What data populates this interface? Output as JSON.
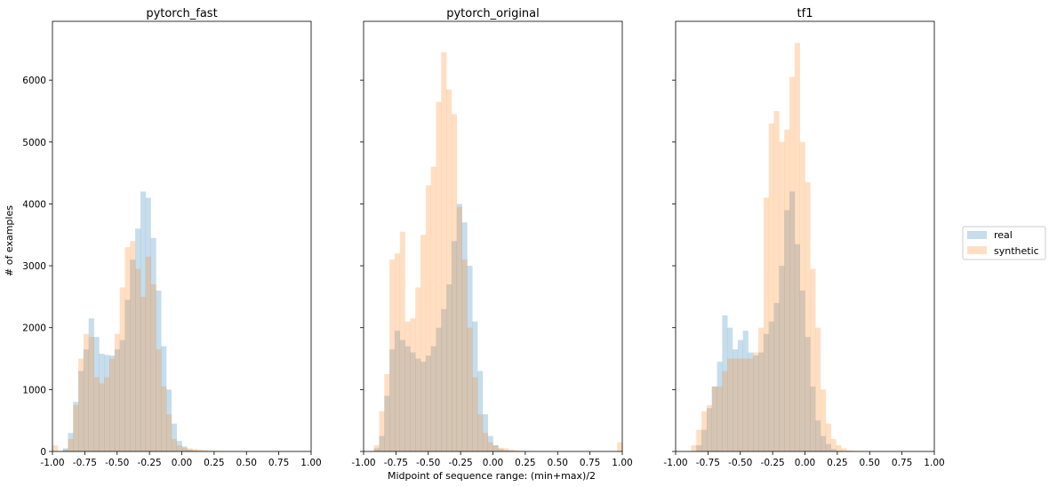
{
  "figure": {
    "xlabel": "Midpoint of sequence range: (min+max)/2",
    "ylabel": "# of examples",
    "legend": {
      "placement": "right-outside",
      "entries": [
        {
          "label": "real",
          "color": "#1f77b4"
        },
        {
          "label": "synthetic",
          "color": "#ff7f0e"
        }
      ]
    },
    "series_alpha": 0.25
  },
  "chart_data": [
    {
      "type": "histogram",
      "title": "pytorch_fast",
      "xlim": [
        -1.0,
        1.0
      ],
      "ylim": [
        0,
        6950
      ],
      "xticks": [
        "-1.00",
        "-0.75",
        "-0.50",
        "-0.25",
        "0.00",
        "0.25",
        "0.50",
        "0.75",
        "1.00"
      ],
      "xtick_values": [
        -1.0,
        -0.75,
        -0.5,
        -0.25,
        0.0,
        0.25,
        0.5,
        0.75,
        1.0
      ],
      "yticks": [
        "0",
        "1000",
        "2000",
        "3000",
        "4000",
        "5000",
        "6000"
      ],
      "ytick_values": [
        0,
        1000,
        2000,
        3000,
        4000,
        5000,
        6000
      ],
      "show_ytick_labels": true,
      "bin_edges_start": -1.0,
      "bin_width": 0.04,
      "series": [
        {
          "name": "real",
          "color": "#1f77b4",
          "values": [
            0,
            0,
            50,
            300,
            800,
            1300,
            1650,
            2150,
            1850,
            1580,
            1560,
            1550,
            1650,
            1800,
            2450,
            3100,
            3600,
            4200,
            4100,
            3450,
            2600,
            1700,
            1000,
            450,
            170,
            80,
            30,
            15,
            8,
            5,
            0,
            0,
            0,
            0,
            0,
            0,
            0,
            0,
            0,
            0,
            0,
            0,
            0,
            0,
            0,
            0,
            0,
            0,
            0,
            0
          ]
        },
        {
          "name": "synthetic",
          "color": "#ff7f0e",
          "values": [
            100,
            0,
            30,
            200,
            750,
            1500,
            1900,
            1850,
            1200,
            1100,
            1200,
            1500,
            1900,
            2650,
            3300,
            3400,
            2950,
            2500,
            3150,
            2700,
            1650,
            1050,
            600,
            200,
            100,
            60,
            50,
            40,
            30,
            20,
            15,
            10,
            5,
            3,
            0,
            0,
            0,
            0,
            0,
            0,
            0,
            0,
            0,
            0,
            0,
            0,
            0,
            0,
            0,
            0
          ]
        }
      ]
    },
    {
      "type": "histogram",
      "title": "pytorch_original",
      "xlim": [
        -1.0,
        1.0
      ],
      "ylim": [
        0,
        6950
      ],
      "xticks": [
        "-1.00",
        "-0.75",
        "-0.50",
        "-0.25",
        "0.00",
        "0.25",
        "0.50",
        "0.75",
        "1.00"
      ],
      "xtick_values": [
        -1.0,
        -0.75,
        -0.5,
        -0.25,
        0.0,
        0.25,
        0.5,
        0.75,
        1.0
      ],
      "yticks": [
        "0",
        "1000",
        "2000",
        "3000",
        "4000",
        "5000",
        "6000"
      ],
      "ytick_values": [
        0,
        1000,
        2000,
        3000,
        4000,
        5000,
        6000
      ],
      "show_ytick_labels": false,
      "bin_edges_start": -1.0,
      "bin_width": 0.04,
      "series": [
        {
          "name": "real",
          "color": "#1f77b4",
          "values": [
            0,
            0,
            50,
            250,
            900,
            1650,
            1950,
            1800,
            1700,
            1600,
            1500,
            1450,
            1550,
            1700,
            2000,
            2300,
            2700,
            3400,
            4000,
            3700,
            3000,
            2100,
            1300,
            600,
            250,
            100,
            40,
            20,
            10,
            5,
            0,
            0,
            0,
            0,
            0,
            0,
            0,
            0,
            0,
            0,
            0,
            0,
            0,
            0,
            0,
            0,
            0,
            0,
            0,
            0
          ]
        },
        {
          "name": "synthetic",
          "color": "#ff7f0e",
          "values": [
            0,
            0,
            100,
            650,
            1250,
            3100,
            3200,
            3550,
            2100,
            2150,
            2650,
            3500,
            4300,
            4600,
            5650,
            6450,
            5850,
            5450,
            3950,
            3100,
            2000,
            1200,
            600,
            300,
            150,
            100,
            60,
            50,
            30,
            20,
            15,
            10,
            5,
            0,
            0,
            0,
            0,
            0,
            0,
            0,
            0,
            0,
            0,
            0,
            0,
            0,
            0,
            0,
            0,
            150
          ]
        }
      ]
    },
    {
      "type": "histogram",
      "title": "tf1",
      "xlim": [
        -1.0,
        1.0
      ],
      "ylim": [
        0,
        6950
      ],
      "xticks": [
        "-1.00",
        "-0.75",
        "-0.50",
        "-0.25",
        "0.00",
        "0.25",
        "0.50",
        "0.75",
        "1.00"
      ],
      "xtick_values": [
        -1.0,
        -0.75,
        -0.5,
        -0.25,
        0.0,
        0.25,
        0.5,
        0.75,
        1.0
      ],
      "yticks": [
        "0",
        "1000",
        "2000",
        "3000",
        "4000",
        "5000",
        "6000"
      ],
      "ytick_values": [
        0,
        1000,
        2000,
        3000,
        4000,
        5000,
        6000
      ],
      "show_ytick_labels": false,
      "bin_edges_start": -1.0,
      "bin_width": 0.04,
      "series": [
        {
          "name": "real",
          "color": "#1f77b4",
          "values": [
            0,
            0,
            0,
            0,
            100,
            350,
            700,
            1050,
            1450,
            2200,
            2000,
            1650,
            1800,
            1950,
            1600,
            1550,
            1600,
            1900,
            2100,
            2400,
            3000,
            3900,
            4200,
            3350,
            2600,
            1850,
            1050,
            500,
            250,
            120,
            40,
            10,
            0,
            0,
            0,
            0,
            0,
            0,
            0,
            0,
            0,
            0,
            0,
            0,
            0,
            0,
            0,
            0,
            0,
            0
          ]
        },
        {
          "name": "synthetic",
          "color": "#ff7f0e",
          "values": [
            0,
            0,
            0,
            100,
            350,
            650,
            750,
            1050,
            1050,
            1300,
            1500,
            1500,
            1500,
            1500,
            1500,
            1600,
            2000,
            4100,
            5300,
            5500,
            5000,
            5200,
            6050,
            6600,
            5000,
            4350,
            2950,
            2000,
            1000,
            450,
            200,
            100,
            50,
            15,
            10,
            5,
            0,
            0,
            0,
            0,
            0,
            0,
            0,
            0,
            0,
            0,
            0,
            0,
            0,
            0
          ]
        }
      ]
    }
  ]
}
